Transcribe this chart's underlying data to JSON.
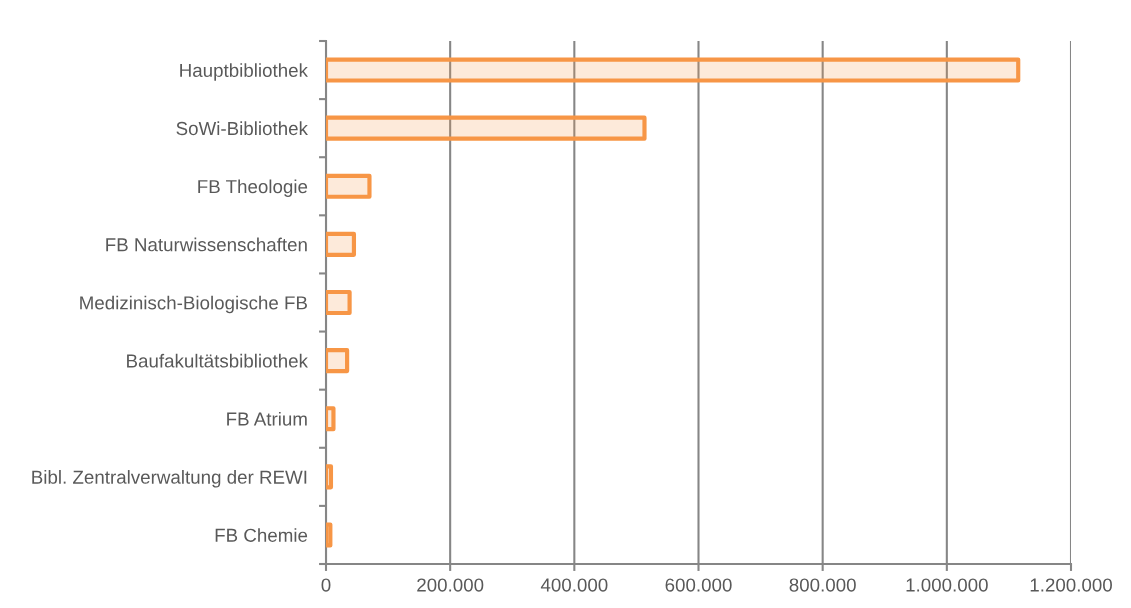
{
  "chart_data": {
    "type": "bar",
    "orientation": "horizontal",
    "categories": [
      "Hauptbibliothek",
      "SoWi-Bibliothek",
      "FB Theologie",
      "FB Naturwissenschaften",
      "Medizinisch-Biologische FB",
      "Baufakultätsbibliothek",
      "FB Atrium",
      "Bibl. Zentralverwaltung der REWI",
      "FB Chemie"
    ],
    "values": [
      1115000,
      513000,
      70000,
      45000,
      38000,
      34000,
      12000,
      8000,
      7000
    ],
    "color": "#f79646",
    "xlim": [
      0,
      1200000
    ],
    "xticks": [
      0,
      {
        "value": 200000,
        "label": "200.000"
      },
      {
        "value": 400000,
        "label": "400.000"
      },
      {
        "value": 600000,
        "label": "600.000"
      },
      {
        "value": 800000,
        "label": "800.000"
      },
      {
        "value": 1000000,
        "label": "1.000.000"
      },
      {
        "value": 1200000,
        "label": "1.200.000"
      }
    ],
    "grid": "x",
    "legend": false
  }
}
